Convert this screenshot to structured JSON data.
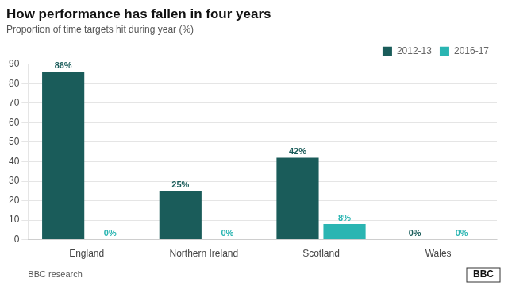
{
  "chart_data": {
    "type": "bar",
    "title": "How performance has fallen in four years",
    "subtitle": "Proportion of time targets hit during year (%)",
    "categories": [
      "England",
      "Northern Ireland",
      "Scotland",
      "Wales"
    ],
    "series": [
      {
        "name": "2012-13",
        "color": "#1a5c5a",
        "values": [
          86,
          25,
          42,
          0
        ],
        "value_labels": [
          "86%",
          "25%",
          "42%",
          "0%"
        ]
      },
      {
        "name": "2016-17",
        "color": "#2ab5b2",
        "values": [
          0,
          0,
          8,
          0
        ],
        "value_labels": [
          "0%",
          "0%",
          "8%",
          "0%"
        ]
      }
    ],
    "ylim": [
      0,
      90
    ],
    "yticks": [
      0,
      10,
      20,
      30,
      40,
      50,
      60,
      70,
      80,
      90
    ],
    "grid": true,
    "legend": "upper right",
    "data_labels": true,
    "annotations": [
      "BBC research",
      "BBC"
    ]
  }
}
